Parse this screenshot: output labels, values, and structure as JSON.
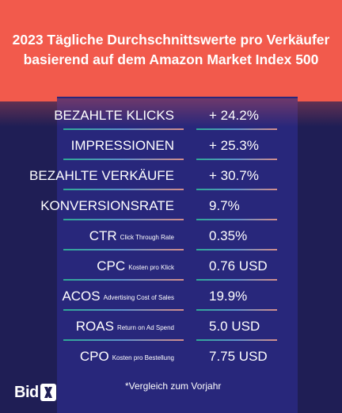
{
  "header": {
    "title_line1": "2023 Tägliche Durchschnittswerte pro Verkäufer",
    "title_line2": "basierend auf dem Amazon Market Index 500",
    "background_color": "#f25a4c"
  },
  "metrics": [
    {
      "label": "BEZAHLTE KLICKS",
      "sub": "",
      "value": "+ 24.2%"
    },
    {
      "label": "IMPRESSIONEN",
      "sub": "",
      "value": "+ 25.3%"
    },
    {
      "label": "BEZAHLTE VERKÄUFE",
      "sub": "",
      "value": "+ 30.7%"
    },
    {
      "label": "KONVERSIONSRATE",
      "sub": "",
      "value": "9.7%"
    },
    {
      "label": "CTR",
      "sub": "Click Through Rate",
      "value": "0.35%"
    },
    {
      "label": "CPC",
      "sub": "Kosten pro Klick",
      "value": "0.76 USD"
    },
    {
      "label": "ACOS",
      "sub": "Advertising Cost of Sales",
      "value": "19.9%"
    },
    {
      "label": "ROAS",
      "sub": "Return on Ad Spend",
      "value": "5.0 USD"
    },
    {
      "label": "CPO",
      "sub": "Kosten pro Bestellung",
      "value": "7.75 USD"
    }
  ],
  "footnote": "*Vergleich zum Vorjahr",
  "logo": {
    "text": "Bid",
    "mark_icon": "x-icon"
  },
  "colors": {
    "background": "#1f1e55",
    "panel": "#28277b",
    "accent": "#f25a4c"
  }
}
